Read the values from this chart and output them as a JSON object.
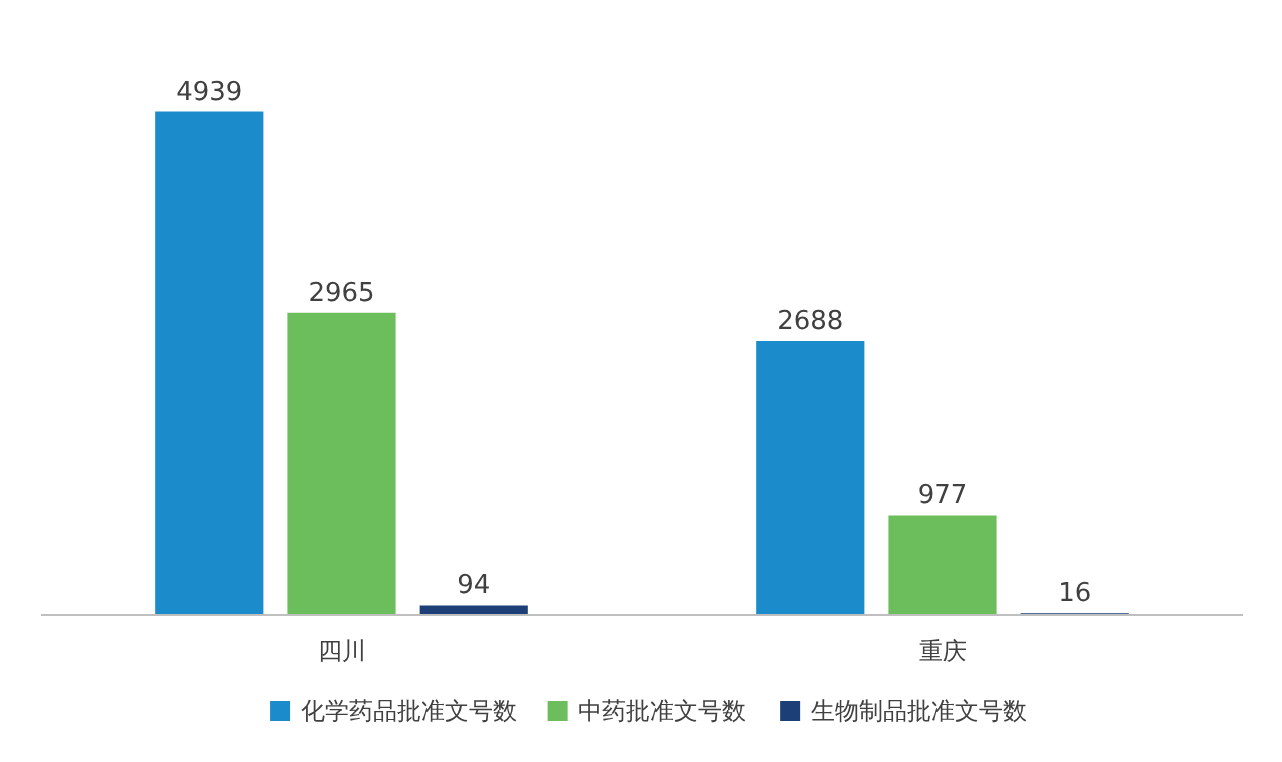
{
  "chart_data": {
    "type": "bar",
    "categories": [
      "四川",
      "重庆"
    ],
    "series": [
      {
        "name": "化学药品批准文号数",
        "color": "#1b8bcb",
        "values": [
          4939,
          2688
        ]
      },
      {
        "name": "中药批准文号数",
        "color": "#6cbd5b",
        "values": [
          2965,
          977
        ]
      },
      {
        "name": "生物制品批准文号数",
        "color": "#1c3f78",
        "values": [
          94,
          16
        ]
      }
    ],
    "data_labels": true,
    "legend": "bottom"
  }
}
